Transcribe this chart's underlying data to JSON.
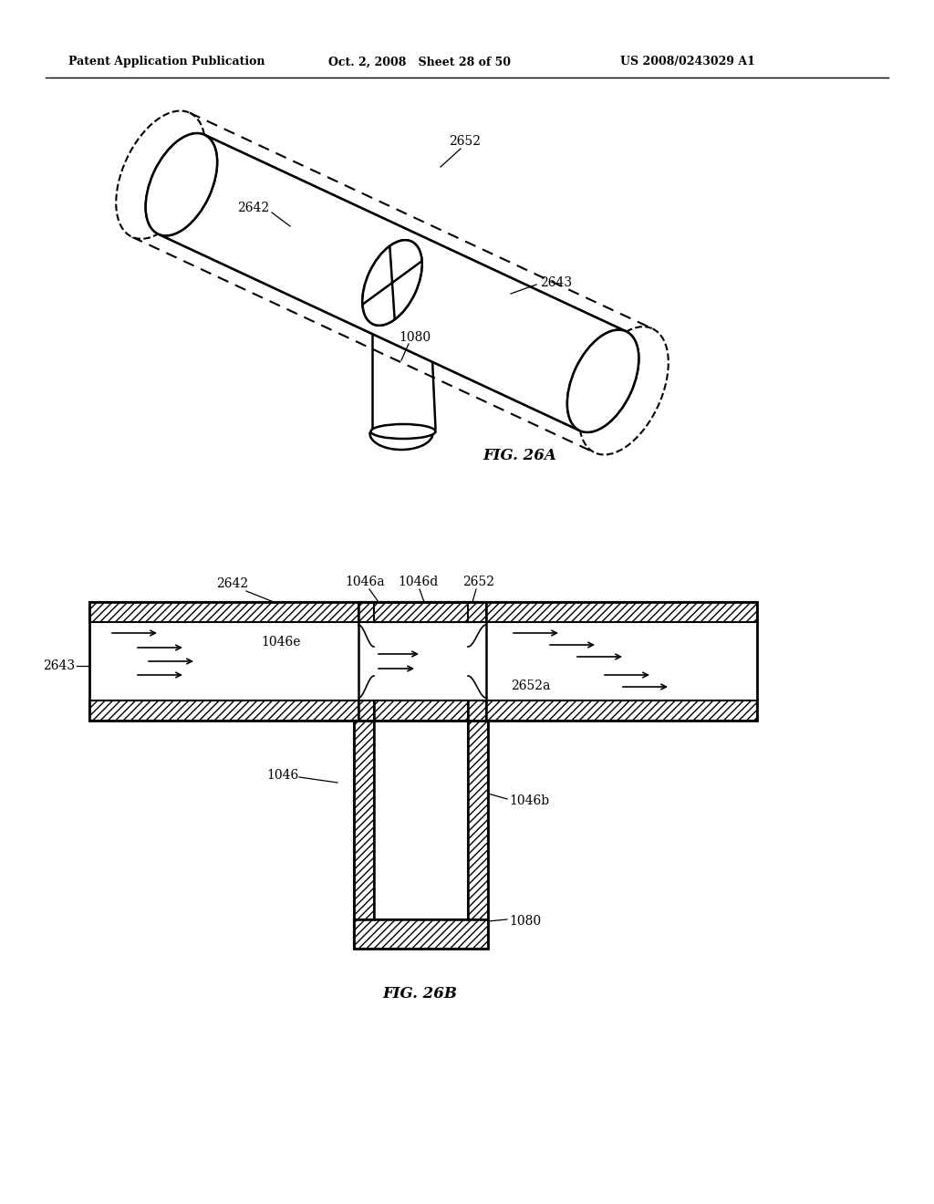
{
  "bg_color": "#ffffff",
  "line_color": "#000000",
  "header_left": "Patent Application Publication",
  "header_mid": "Oct. 2, 2008   Sheet 28 of 50",
  "header_right": "US 2008/0243029 A1",
  "fig26a_caption": "FIG. 26A",
  "fig26b_caption": "FIG. 26B"
}
